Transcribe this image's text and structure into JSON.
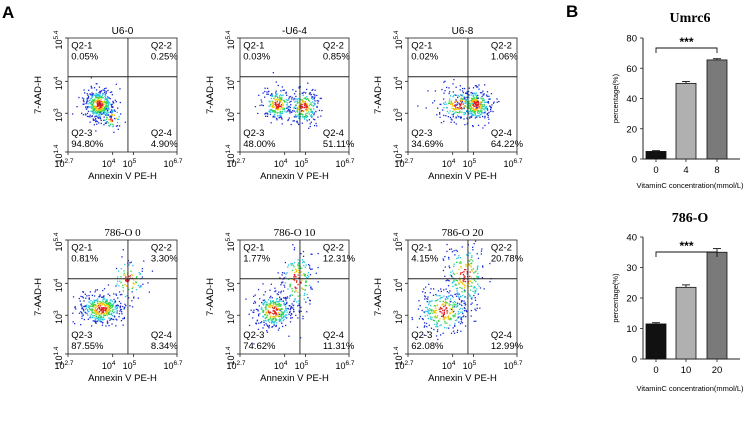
{
  "panel_labels": {
    "a": "A",
    "b": "B"
  },
  "chart_data": [
    {
      "type": "scatter",
      "subtype": "flow-cytometry-quadrant",
      "title": "U6-0",
      "xlabel": "Annexin V PE-H",
      "ylabel": "7-AAD-H",
      "x_ticks": [
        {
          "base": "10",
          "exp": "2.7"
        },
        {
          "base": "10",
          "exp": "4"
        },
        {
          "base": "10",
          "exp": "5"
        },
        {
          "base": "10",
          "exp": "6.7"
        }
      ],
      "y_ticks": [
        {
          "base": "10",
          "exp": "1.4"
        },
        {
          "base": "10",
          "exp": "3"
        },
        {
          "base": "10",
          "exp": "4"
        },
        {
          "base": "10",
          "exp": "5.4"
        }
      ],
      "quadrants": [
        {
          "name": "Q2-1",
          "value": "0.05%"
        },
        {
          "name": "Q2-2",
          "value": "0.25%"
        },
        {
          "name": "Q2-3",
          "value": "94.80%"
        },
        {
          "name": "Q2-4",
          "value": "4.90%"
        }
      ]
    },
    {
      "type": "scatter",
      "subtype": "flow-cytometry-quadrant",
      "title": "-U6-4",
      "xlabel": "Annexin V PE-H",
      "ylabel": "7-AAD-H",
      "x_ticks": [
        {
          "base": "10",
          "exp": "2.7"
        },
        {
          "base": "10",
          "exp": "4"
        },
        {
          "base": "10",
          "exp": "5"
        },
        {
          "base": "10",
          "exp": "6.7"
        }
      ],
      "y_ticks": [
        {
          "base": "10",
          "exp": "1.4"
        },
        {
          "base": "10",
          "exp": "3"
        },
        {
          "base": "10",
          "exp": "4"
        },
        {
          "base": "10",
          "exp": "5.4"
        }
      ],
      "quadrants": [
        {
          "name": "Q2-1",
          "value": "0.03%"
        },
        {
          "name": "Q2-2",
          "value": "0.85%"
        },
        {
          "name": "Q2-3",
          "value": "48.00%"
        },
        {
          "name": "Q2-4",
          "value": "51.11%"
        }
      ]
    },
    {
      "type": "scatter",
      "subtype": "flow-cytometry-quadrant",
      "title": "U6-8",
      "xlabel": "Annexin V PE-H",
      "ylabel": "7-AAD-H",
      "x_ticks": [
        {
          "base": "10",
          "exp": "2.7"
        },
        {
          "base": "10",
          "exp": "4"
        },
        {
          "base": "10",
          "exp": "5"
        },
        {
          "base": "10",
          "exp": "6.7"
        }
      ],
      "y_ticks": [
        {
          "base": "10",
          "exp": "1.4"
        },
        {
          "base": "10",
          "exp": "3"
        },
        {
          "base": "10",
          "exp": "4"
        },
        {
          "base": "10",
          "exp": "5.4"
        }
      ],
      "quadrants": [
        {
          "name": "Q2-1",
          "value": "0.02%"
        },
        {
          "name": "Q2-2",
          "value": "1.06%"
        },
        {
          "name": "Q2-3",
          "value": "34.69%"
        },
        {
          "name": "Q2-4",
          "value": "64.22%"
        }
      ]
    },
    {
      "type": "scatter",
      "subtype": "flow-cytometry-quadrant",
      "title": "786-O 0",
      "xlabel": "Annexin V PE-H",
      "ylabel": "7-AAD-H",
      "x_ticks": [
        {
          "base": "10",
          "exp": "2.7"
        },
        {
          "base": "10",
          "exp": "4"
        },
        {
          "base": "10",
          "exp": "5"
        },
        {
          "base": "10",
          "exp": "6.7"
        }
      ],
      "y_ticks": [
        {
          "base": "10",
          "exp": "1.4"
        },
        {
          "base": "10",
          "exp": "3"
        },
        {
          "base": "10",
          "exp": "4"
        },
        {
          "base": "10",
          "exp": "5.4"
        }
      ],
      "quadrants": [
        {
          "name": "Q2-1",
          "value": "0.81%"
        },
        {
          "name": "Q2-2",
          "value": "3.30%"
        },
        {
          "name": "Q2-3",
          "value": "87.55%"
        },
        {
          "name": "Q2-4",
          "value": "8.34%"
        }
      ]
    },
    {
      "type": "scatter",
      "subtype": "flow-cytometry-quadrant",
      "title": "786-O 10",
      "xlabel": "Annexin V PE-H",
      "ylabel": "7-AAD-H",
      "x_ticks": [
        {
          "base": "10",
          "exp": "2.7"
        },
        {
          "base": "10",
          "exp": "4"
        },
        {
          "base": "10",
          "exp": "5"
        },
        {
          "base": "10",
          "exp": "6.7"
        }
      ],
      "y_ticks": [
        {
          "base": "10",
          "exp": "1.4"
        },
        {
          "base": "10",
          "exp": "3"
        },
        {
          "base": "10",
          "exp": "4"
        },
        {
          "base": "10",
          "exp": "5.4"
        }
      ],
      "quadrants": [
        {
          "name": "Q2-1",
          "value": "1.77%"
        },
        {
          "name": "Q2-2",
          "value": "12.31%"
        },
        {
          "name": "Q2-3",
          "value": "74.62%"
        },
        {
          "name": "Q2-4",
          "value": "11.31%"
        }
      ]
    },
    {
      "type": "scatter",
      "subtype": "flow-cytometry-quadrant",
      "title": "786-O 20",
      "xlabel": "Annexin V PE-H",
      "ylabel": "7-AAD-H",
      "x_ticks": [
        {
          "base": "10",
          "exp": "2.7"
        },
        {
          "base": "10",
          "exp": "4"
        },
        {
          "base": "10",
          "exp": "5"
        },
        {
          "base": "10",
          "exp": "6.7"
        }
      ],
      "y_ticks": [
        {
          "base": "10",
          "exp": "1.4"
        },
        {
          "base": "10",
          "exp": "3"
        },
        {
          "base": "10",
          "exp": "4"
        },
        {
          "base": "10",
          "exp": "5.4"
        }
      ],
      "quadrants": [
        {
          "name": "Q2-1",
          "value": "4.15%"
        },
        {
          "name": "Q2-2",
          "value": "20.78%"
        },
        {
          "name": "Q2-3",
          "value": "62.08%"
        },
        {
          "name": "Q2-4",
          "value": "12.99%"
        }
      ]
    },
    {
      "type": "bar",
      "title": "Umrc6",
      "xlabel": "VitaminC concentration(mmol/L)",
      "ylabel": "percentage(%)",
      "categories": [
        "0",
        "4",
        "8"
      ],
      "values": [
        5,
        50,
        65.5
      ],
      "errors": [
        0.5,
        1.2,
        0.8
      ],
      "ylim": [
        0,
        80
      ],
      "yticks": [
        0,
        20,
        40,
        60,
        80
      ],
      "bar_colors": [
        "#111111",
        "#b0b0b0",
        "#7a7a7a"
      ],
      "significance": "***"
    },
    {
      "type": "bar",
      "title": "786-O",
      "xlabel": "VitaminC concentration(mmol/L)",
      "ylabel": "percentage(%)",
      "categories": [
        "0",
        "10",
        "20"
      ],
      "values": [
        11.5,
        23.5,
        35
      ],
      "errors": [
        0.4,
        0.8,
        1.2
      ],
      "ylim": [
        0,
        40
      ],
      "yticks": [
        0,
        10,
        20,
        30,
        40
      ],
      "bar_colors": [
        "#111111",
        "#b0b0b0",
        "#7a7a7a"
      ],
      "significance": "***"
    }
  ]
}
